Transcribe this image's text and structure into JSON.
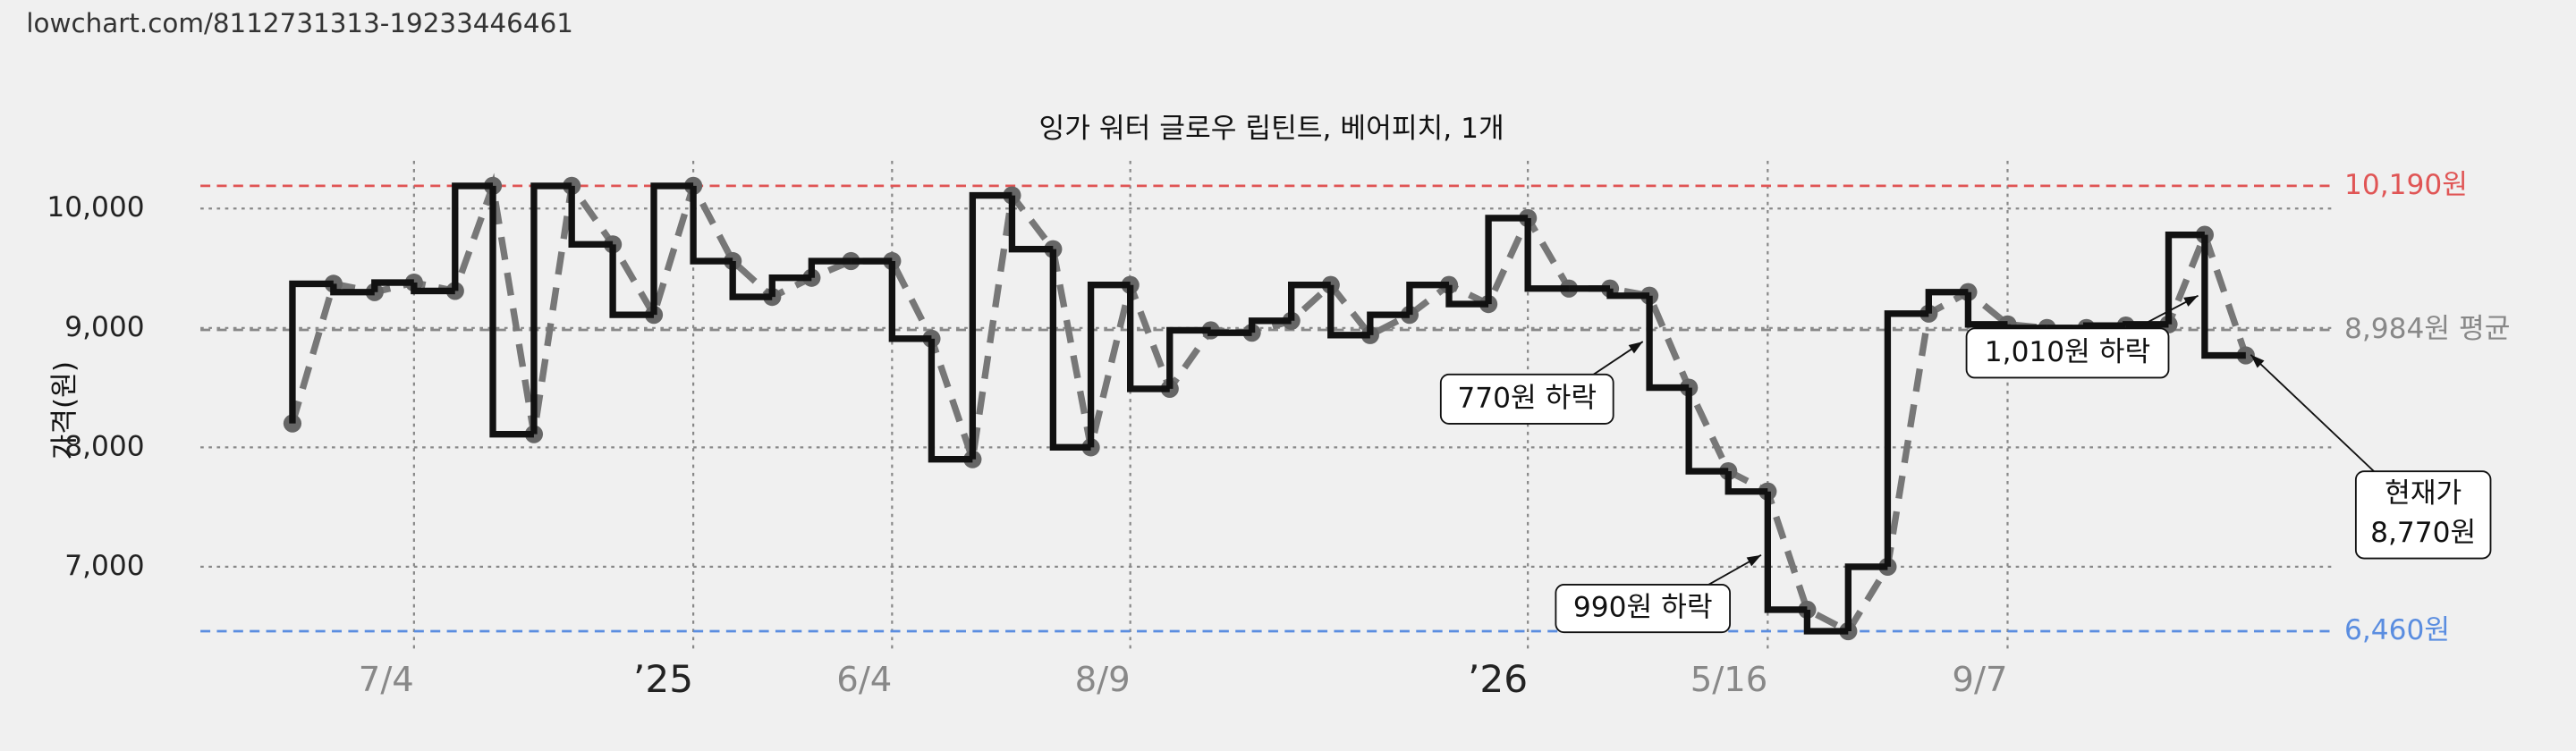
{
  "header": {
    "url": "lowchart.com/8112731313-19233446461"
  },
  "chart_data": {
    "type": "step-price",
    "title": "잉가 워터 글로우 립틴트, 베어피치, 1개",
    "ylabel": "가격(원)",
    "x": [
      5.6,
      8.1,
      10.6,
      13.0,
      15.5,
      17.8,
      20.3,
      22.6,
      25.1,
      27.6,
      30.0,
      32.4,
      34.8,
      37.2,
      39.6,
      42.1,
      44.5,
      47.0,
      49.4,
      51.9,
      54.2,
      56.6,
      59.0,
      61.5,
      64.0,
      66.4,
      68.8,
      71.2,
      73.6,
      76.0,
      78.4,
      80.8,
      83.3,
      85.8,
      88.2,
      90.6,
      93.0,
      95.4,
      97.8,
      100.3,
      102.7,
      105.2,
      107.6,
      110.0,
      112.4,
      114.8,
      117.2,
      119.8,
      122.0,
      124.5
    ],
    "series": [
      {
        "values": [
          8200,
          9370,
          9300,
          9380,
          9310,
          10190,
          8110,
          10190,
          9700,
          9110,
          10190,
          9560,
          9260,
          9420,
          9560,
          9560,
          8910,
          7900,
          10110,
          9660,
          8000,
          9360,
          8490,
          8980,
          8960,
          9060,
          9360,
          8940,
          9110,
          9360,
          9200,
          9920,
          9330,
          9330,
          9270,
          8500,
          7800,
          7630,
          6640,
          6460,
          7000,
          9120,
          9300,
          9030,
          9000,
          9000,
          9020,
          9030,
          9780,
          8770
        ],
        "color": "#111111",
        "line_color": "#777777",
        "point_color": "#666666"
      }
    ],
    "xlim": [
      0,
      130
    ],
    "xticks": [
      {
        "value": 13.0,
        "label": "7/4"
      },
      {
        "value": 30.0,
        "label": "’25"
      },
      {
        "value": 42.1,
        "label": "6/4"
      },
      {
        "value": 56.6,
        "label": "8/9"
      },
      {
        "value": 80.8,
        "label": "’26"
      },
      {
        "value": 95.4,
        "label": "5/16"
      },
      {
        "value": 110.0,
        "label": "9/7"
      }
    ],
    "ylim": [
      6300,
      10400
    ],
    "yticks": [
      {
        "value": 7000,
        "label": "7,000"
      },
      {
        "value": 8000,
        "label": "8,000"
      },
      {
        "value": 9000,
        "label": "9,000"
      },
      {
        "value": 10000,
        "label": "10,000"
      }
    ],
    "grid": true,
    "reference_lines": [
      {
        "value": 10190,
        "label": "10,190원",
        "color": "#e05555"
      },
      {
        "value": 8984,
        "label": "8,984원 평균",
        "color": "#888888"
      },
      {
        "value": 6460,
        "label": "6,460원",
        "color": "#5a8de0"
      }
    ],
    "annotations": [
      {
        "text": "770원 하락"
      },
      {
        "text": "990원 하락"
      },
      {
        "text": "1,010원 하락"
      },
      {
        "text": "현재가"
      },
      {
        "text": "8,770원"
      }
    ]
  }
}
